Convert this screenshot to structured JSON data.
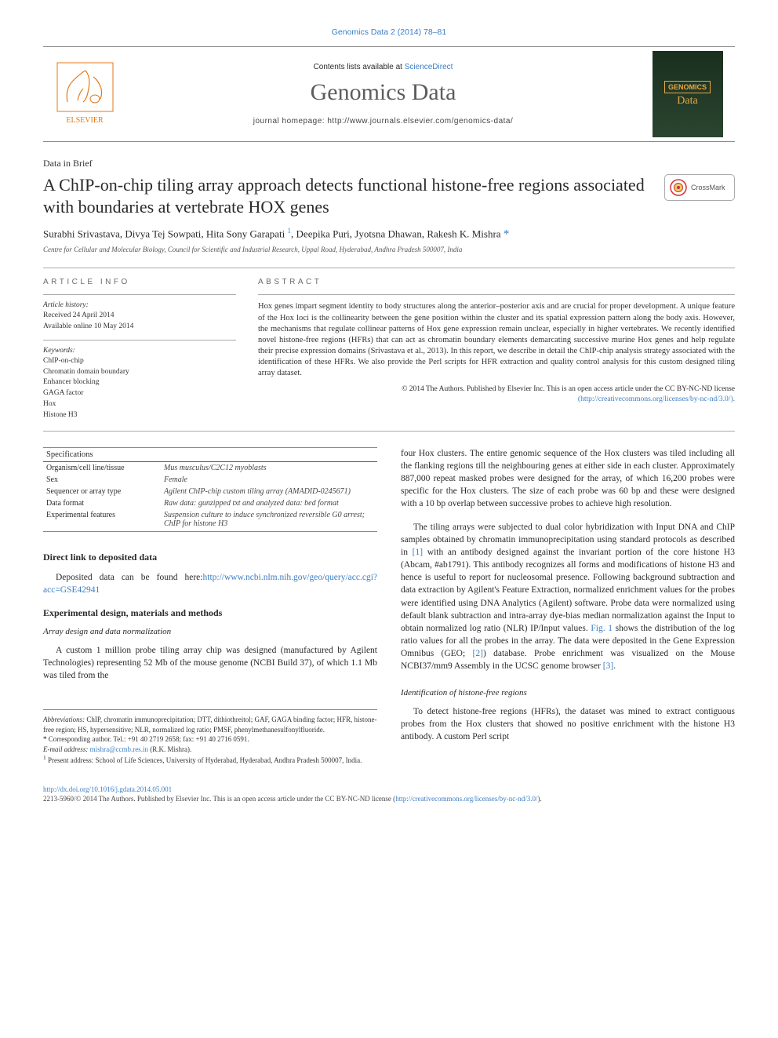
{
  "top_link": "Genomics Data 2 (2014) 78–81",
  "masthead": {
    "contents_prefix": "Contents lists available at ",
    "contents_link": "ScienceDirect",
    "journal_name": "Genomics Data",
    "homepage_prefix": "journal homepage: ",
    "homepage_url": "http://www.journals.elsevier.com/genomics-data/",
    "cover_line1": "GENOMICS",
    "cover_line2": "Data"
  },
  "article_type": "Data in Brief",
  "article_title": "A ChIP-on-chip tiling array approach detects functional histone-free regions associated with boundaries at vertebrate HOX genes",
  "crossmark_label": "CrossMark",
  "authors": "Surabhi Srivastava, Divya Tej Sowpati, Hita Sony Garapati ",
  "author_sup1": "1",
  "authors2": ", Deepika Puri, Jyotsna Dhawan, Rakesh K. Mishra ",
  "author_star": "*",
  "affiliation": "Centre for Cellular and Molecular Biology, Council for Scientific and Industrial Research, Uppal Road, Hyderabad, Andhra Pradesh 500007, India",
  "info": {
    "article_info_label": "ARTICLE INFO",
    "abstract_label": "ABSTRACT",
    "history_label": "Article history:",
    "history_text": "Received 24 April 2014\nAvailable online 10 May 2014",
    "keywords_label": "Keywords:",
    "keywords": [
      "ChIP-on-chip",
      "Chromatin domain boundary",
      "Enhancer blocking",
      "GAGA factor",
      "Hox",
      "Histone H3"
    ],
    "abstract_text": "Hox genes impart segment identity to body structures along the anterior–posterior axis and are crucial for proper development. A unique feature of the Hox loci is the collinearity between the gene position within the cluster and its spatial expression pattern along the body axis. However, the mechanisms that regulate collinear patterns of Hox gene expression remain unclear, especially in higher vertebrates. We recently identified novel histone-free regions (HFRs) that can act as chromatin boundary elements demarcating successive murine Hox genes and help regulate their precise expression domains (Srivastava et al., 2013). In this report, we describe in detail the ChIP-chip analysis strategy associated with the identification of these HFRs. We also provide the Perl scripts for HFR extraction and quality control analysis for this custom designed tiling array dataset.",
    "copyright_text": "© 2014 The Authors. Published by Elsevier Inc. This is an open access article under the CC BY-NC-ND license",
    "license_url": "(http://creativecommons.org/licenses/by-nc-nd/3.0/)."
  },
  "spec_table": {
    "header": "Specifications",
    "rows": [
      [
        "Organism/cell line/tissue",
        "Mus musculus/C2C12 myoblasts"
      ],
      [
        "Sex",
        "Female"
      ],
      [
        "Sequencer or array type",
        "Agilent ChIP-chip custom tiling array (AMADID-0245671)"
      ],
      [
        "Data format",
        "Raw data: gunzipped txt and analyzed data: bed format"
      ],
      [
        "Experimental features",
        "Suspension culture to induce synchronized reversible G0 arrest; ChIP for histone H3"
      ]
    ]
  },
  "sections": {
    "deposited_heading": "Direct link to deposited data",
    "deposited_text_prefix": "Deposited data can be found here:",
    "deposited_url": "http://www.ncbi.nlm.nih.gov/geo/query/acc.cgi?acc=GSE42941",
    "exp_heading": "Experimental design, materials and methods",
    "array_subheading": "Array design and data normalization",
    "array_p1": "A custom 1 million probe tiling array chip was designed (manufactured by Agilent Technologies) representing 52 Mb of the mouse genome (NCBI Build 37), of which 1.1 Mb was tiled from the",
    "col2_p1": "four Hox clusters. The entire genomic sequence of the Hox clusters was tiled including all the flanking regions till the neighbouring genes at either side in each cluster. Approximately 887,000 repeat masked probes were designed for the array, of which 16,200 probes were specific for the Hox clusters. The size of each probe was 60 bp and these were designed with a 10 bp overlap between successive probes to achieve high resolution.",
    "col2_p2_a": "The tiling arrays were subjected to dual color hybridization with Input DNA and ChIP samples obtained by chromatin immunoprecipitation using standard protocols as described in ",
    "col2_ref1": "[1]",
    "col2_p2_b": " with an antibody designed against the invariant portion of the core histone H3 (Abcam, #ab1791). This antibody recognizes all forms and modifications of histone H3 and hence is useful to report for nucleosomal presence. Following background subtraction and data extraction by Agilent's Feature Extraction, normalized enrichment values for the probes were identified using DNA Analytics (Agilent) software. Probe data were normalized using default blank subtraction and intra-array dye-bias median normalization against the Input to obtain normalized log ratio (NLR) IP/Input values. ",
    "col2_fig1": "Fig. 1",
    "col2_p2_c": " shows the distribution of the log ratio values for all the probes in the array. The data were deposited in the Gene Expression Omnibus (GEO; ",
    "col2_ref2": "[2]",
    "col2_p2_d": ") database. Probe enrichment was visualized on the Mouse NCBI37/mm9 Assembly in the UCSC genome browser ",
    "col2_ref3": "[3]",
    "col2_p2_e": ".",
    "hfr_subheading": "Identification of histone-free regions",
    "hfr_p1": "To detect histone-free regions (HFRs), the dataset was mined to extract contiguous probes from the Hox clusters that showed no positive enrichment with the histone H3 antibody. A custom Perl script"
  },
  "footnotes": {
    "abbrev_label": "Abbreviations:",
    "abbrev_text": " ChIP, chromatin immunoprecipitation; DTT, dithiothreitol; GAF, GAGA binding factor; HFR, histone-free region; HS, hypersensitive; NLR, normalized log ratio; PMSF, phenylmethanesulfonylfluoride.",
    "corr_label": "* ",
    "corr_text": "Corresponding author. Tel.: +91 40 2719 2658; fax: +91 40 2716 0591.",
    "email_label": "E-mail address: ",
    "email": "mishra@ccmb.res.in",
    "email_suffix": " (R.K. Mishra).",
    "present_label": "1",
    "present_text": " Present address: School of Life Sciences, University of Hyderabad, Hyderabad, Andhra Pradesh 500007, India."
  },
  "bottom": {
    "doi": "http://dx.doi.org/10.1016/j.gdata.2014.05.001",
    "issn_line": "2213-5960/© 2014 The Authors. Published by Elsevier Inc. This is an open access article under the CC BY-NC-ND license (",
    "license_url": "http://creativecommons.org/licenses/by-nc-nd/3.0/",
    "issn_suffix": ")."
  },
  "colors": {
    "link": "#3b7dc4",
    "text": "#2a2a2a",
    "border": "#888888",
    "elsevier_orange": "#e67817",
    "cover_bg": "#1f3526",
    "cover_text": "#e8a845"
  }
}
